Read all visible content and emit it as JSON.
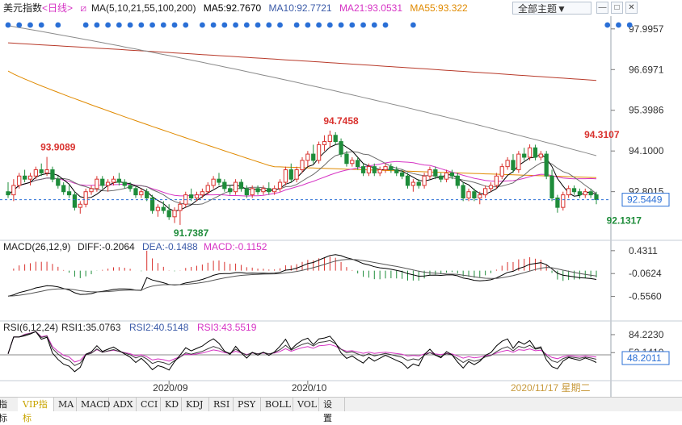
{
  "header": {
    "title": "美元指数",
    "period": "<日线>",
    "ma_label": "MA(5,10,21,55,100,200)",
    "ma5": "MA5:92.7670",
    "ma10": "MA10:92.7721",
    "ma21": "MA21:93.0531",
    "ma55": "MA55:93.322",
    "theme_button": "全部主题▼"
  },
  "colors": {
    "up": "#d9322e",
    "down": "#1e8c3a",
    "ma5": "#000000",
    "ma10": "#6b6b6b",
    "ma21": "#d633c4",
    "ma55": "#e08a00",
    "ma100": "#8a8a8a",
    "ma200": "#b83a2a",
    "dots": "#2a6fd6",
    "current": "#2a6fd6",
    "grid": "#cfd6df"
  },
  "chart_data": [
    {
      "type": "candlestick",
      "title": "美元指数",
      "y_ticks": [
        "97.9957",
        "96.6971",
        "95.3986",
        "94.1000",
        "92.8015"
      ],
      "ylim": [
        91.3,
        98.3
      ],
      "current_value_label": "92.5449",
      "current_value": 92.5449,
      "x_ticks": [
        "2020/09",
        "2020/10"
      ],
      "x_tick_index": [
        29,
        54
      ],
      "date_label": "2020/11/17 星期二",
      "annotations": [
        {
          "text": "93.9089",
          "index": 7,
          "value": 93.9089,
          "color": "#d9322e"
        },
        {
          "text": "94.7458",
          "index": 58,
          "value": 94.7458,
          "color": "#d9322e"
        },
        {
          "text": "94.3107",
          "index": 105,
          "value": 94.3107,
          "color": "#d9322e"
        },
        {
          "text": "91.7387",
          "index": 31,
          "value": 91.7387,
          "color": "#1e8c3a"
        },
        {
          "text": "92.1317",
          "index": 109,
          "value": 92.1317,
          "color": "#1e8c3a"
        }
      ],
      "signal_dot_index": [
        0,
        2,
        4,
        6,
        9,
        14,
        16,
        18,
        20,
        22,
        24,
        26,
        28,
        30,
        32,
        35,
        37,
        39,
        41,
        43,
        45,
        47,
        49,
        52,
        54,
        56,
        58,
        60,
        62,
        64,
        66,
        68,
        73,
        108,
        110,
        112
      ],
      "ohlc": [
        [
          92.8,
          93.1,
          92.6,
          92.7
        ],
        [
          92.7,
          93.2,
          92.5,
          93.0
        ],
        [
          93.0,
          93.4,
          92.9,
          93.3
        ],
        [
          93.3,
          93.5,
          93.1,
          93.2
        ],
        [
          93.2,
          93.4,
          93.0,
          93.3
        ],
        [
          93.3,
          93.6,
          93.2,
          93.5
        ],
        [
          93.5,
          93.7,
          93.3,
          93.4
        ],
        [
          93.4,
          93.91,
          93.3,
          93.5
        ],
        [
          93.5,
          93.6,
          93.1,
          93.2
        ],
        [
          93.2,
          93.3,
          92.9,
          93.0
        ],
        [
          93.0,
          93.1,
          92.7,
          92.8
        ],
        [
          92.8,
          93.0,
          92.6,
          92.7
        ],
        [
          92.7,
          92.8,
          92.2,
          92.3
        ],
        [
          92.3,
          92.5,
          92.1,
          92.4
        ],
        [
          92.4,
          92.9,
          92.3,
          92.8
        ],
        [
          92.8,
          93.0,
          92.7,
          92.9
        ],
        [
          92.9,
          93.3,
          92.8,
          93.2
        ],
        [
          93.2,
          93.3,
          92.9,
          93.0
        ],
        [
          93.0,
          93.2,
          92.8,
          93.1
        ],
        [
          93.1,
          93.3,
          93.0,
          93.2
        ],
        [
          93.2,
          93.4,
          93.0,
          93.1
        ],
        [
          93.1,
          93.2,
          92.9,
          93.0
        ],
        [
          93.0,
          93.1,
          92.8,
          92.9
        ],
        [
          92.9,
          93.0,
          92.6,
          92.7
        ],
        [
          92.7,
          92.9,
          92.6,
          92.8
        ],
        [
          92.8,
          92.9,
          92.5,
          92.6
        ],
        [
          92.6,
          92.7,
          92.1,
          92.2
        ],
        [
          92.2,
          92.4,
          92.0,
          92.3
        ],
        [
          92.3,
          92.5,
          92.1,
          92.2
        ],
        [
          92.2,
          92.4,
          91.9,
          92.0
        ],
        [
          92.0,
          92.3,
          91.8,
          92.2
        ],
        [
          92.2,
          92.5,
          91.74,
          92.4
        ],
        [
          92.4,
          92.8,
          92.3,
          92.7
        ],
        [
          92.7,
          92.9,
          92.5,
          92.6
        ],
        [
          92.6,
          92.8,
          92.5,
          92.7
        ],
        [
          92.7,
          92.9,
          92.6,
          92.8
        ],
        [
          92.8,
          93.1,
          92.7,
          93.0
        ],
        [
          93.0,
          93.3,
          92.9,
          93.2
        ],
        [
          93.2,
          93.4,
          93.0,
          93.1
        ],
        [
          93.1,
          93.2,
          92.8,
          92.9
        ],
        [
          92.9,
          93.0,
          92.7,
          92.8
        ],
        [
          92.8,
          93.2,
          92.7,
          93.1
        ],
        [
          93.1,
          93.2,
          92.8,
          92.9
        ],
        [
          92.9,
          93.0,
          92.6,
          92.7
        ],
        [
          92.7,
          93.0,
          92.6,
          92.9
        ],
        [
          92.9,
          93.0,
          92.7,
          92.8
        ],
        [
          92.8,
          93.0,
          92.7,
          92.9
        ],
        [
          92.9,
          93.1,
          92.7,
          92.8
        ],
        [
          92.8,
          93.0,
          92.7,
          92.9
        ],
        [
          92.9,
          93.2,
          92.8,
          93.1
        ],
        [
          93.1,
          93.6,
          93.0,
          93.5
        ],
        [
          93.5,
          93.7,
          93.1,
          93.2
        ],
        [
          93.2,
          93.6,
          93.1,
          93.5
        ],
        [
          93.5,
          93.9,
          93.4,
          93.8
        ],
        [
          93.8,
          94.1,
          93.6,
          94.0
        ],
        [
          94.0,
          94.3,
          93.7,
          93.8
        ],
        [
          93.8,
          94.4,
          93.7,
          94.3
        ],
        [
          94.3,
          94.6,
          94.1,
          94.4
        ],
        [
          94.4,
          94.75,
          94.2,
          94.6
        ],
        [
          94.6,
          94.7,
          94.3,
          94.4
        ],
        [
          94.4,
          94.5,
          93.9,
          94.0
        ],
        [
          94.0,
          94.1,
          93.6,
          93.7
        ],
        [
          93.7,
          93.9,
          93.6,
          93.8
        ],
        [
          93.8,
          93.9,
          93.5,
          93.6
        ],
        [
          93.6,
          93.7,
          93.3,
          93.4
        ],
        [
          93.4,
          93.7,
          93.3,
          93.6
        ],
        [
          93.6,
          93.7,
          93.3,
          93.4
        ],
        [
          93.4,
          93.6,
          93.3,
          93.5
        ],
        [
          93.5,
          93.7,
          93.4,
          93.6
        ],
        [
          93.6,
          93.7,
          93.4,
          93.5
        ],
        [
          93.5,
          93.6,
          93.3,
          93.4
        ],
        [
          93.4,
          93.5,
          93.2,
          93.3
        ],
        [
          93.3,
          93.4,
          92.9,
          93.0
        ],
        [
          93.0,
          93.2,
          92.8,
          93.1
        ],
        [
          93.1,
          93.2,
          92.9,
          93.0
        ],
        [
          93.0,
          93.4,
          92.9,
          93.3
        ],
        [
          93.3,
          93.6,
          93.2,
          93.5
        ],
        [
          93.5,
          93.6,
          93.2,
          93.3
        ],
        [
          93.3,
          93.4,
          93.1,
          93.2
        ],
        [
          93.2,
          93.5,
          93.1,
          93.4
        ],
        [
          93.4,
          93.5,
          93.2,
          93.3
        ],
        [
          93.3,
          93.4,
          92.9,
          93.0
        ],
        [
          93.0,
          93.1,
          92.5,
          92.6
        ],
        [
          92.6,
          92.9,
          92.5,
          92.8
        ],
        [
          92.8,
          92.9,
          92.5,
          92.6
        ],
        [
          92.6,
          92.8,
          92.4,
          92.7
        ],
        [
          92.7,
          93.0,
          92.6,
          92.9
        ],
        [
          92.9,
          93.1,
          92.8,
          93.0
        ],
        [
          93.0,
          93.4,
          92.9,
          93.3
        ],
        [
          93.3,
          93.7,
          93.2,
          93.6
        ],
        [
          93.6,
          93.9,
          93.5,
          93.8
        ],
        [
          93.8,
          94.0,
          93.4,
          93.5
        ],
        [
          93.5,
          94.1,
          93.4,
          94.0
        ],
        [
          94.0,
          94.2,
          93.8,
          93.9
        ],
        [
          93.9,
          94.31,
          93.8,
          94.2
        ],
        [
          94.2,
          94.3,
          93.8,
          93.9
        ],
        [
          93.9,
          94.1,
          93.8,
          94.0
        ],
        [
          94.0,
          94.1,
          93.2,
          93.3
        ],
        [
          93.3,
          93.5,
          92.5,
          92.6
        ],
        [
          92.6,
          92.7,
          92.13,
          92.3
        ],
        [
          92.3,
          92.8,
          92.2,
          92.7
        ],
        [
          92.7,
          93.0,
          92.6,
          92.9
        ],
        [
          92.9,
          93.0,
          92.7,
          92.8
        ],
        [
          92.8,
          92.9,
          92.6,
          92.7
        ],
        [
          92.7,
          92.9,
          92.6,
          92.8
        ],
        [
          92.8,
          92.9,
          92.6,
          92.7
        ],
        [
          92.7,
          92.8,
          92.4,
          92.55
        ]
      ]
    },
    {
      "type": "macd",
      "title": "MACD(26,12,9)",
      "diff_label": "DIFF:-0.2064",
      "dea_label": "DEA:-0.1488",
      "macd_label": "MACD:-0.1152",
      "y_ticks": [
        "0.4311",
        "-0.0624",
        "-0.5560"
      ],
      "ylim": [
        -1.05,
        0.55
      ]
    },
    {
      "type": "rsi",
      "title": "RSI(6,12,24)",
      "rsi1_label": "RSI1:35.0763",
      "rsi2_label": "RSI2:40.5148",
      "rsi3_label": "RSI3:43.5519",
      "y_ticks": [
        "84.2230",
        "52.1410"
      ],
      "current_value_label": "48.2011",
      "ylim": [
        5,
        100
      ]
    }
  ],
  "tabs": [
    {
      "label": "指标",
      "active": false
    },
    {
      "label": "VIP指标",
      "active": true
    },
    {
      "label": "MA",
      "active": false
    },
    {
      "label": "MACD",
      "active": false
    },
    {
      "label": "ADX",
      "active": false
    },
    {
      "label": "CCI",
      "active": false
    },
    {
      "label": "KD",
      "active": false
    },
    {
      "label": "KDJ",
      "active": false
    },
    {
      "label": "RSI",
      "active": false
    },
    {
      "label": "PSY",
      "active": false
    },
    {
      "label": "BOLL",
      "active": false
    },
    {
      "label": "VOL",
      "active": false
    },
    {
      "label": "设置",
      "active": false
    }
  ]
}
